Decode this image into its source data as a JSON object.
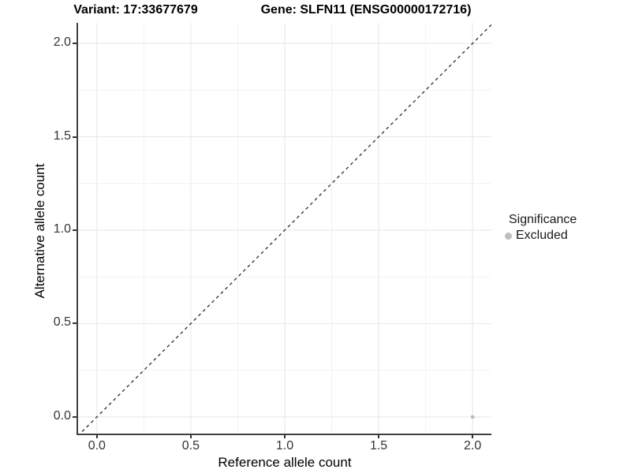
{
  "titles": {
    "variant": "Variant: 17:33677679",
    "gene": "Gene: SLFN11 (ENSG00000172716)"
  },
  "chart_data": {
    "type": "scatter",
    "title_left": "Variant: 17:33677679",
    "title_right": "Gene: SLFN11 (ENSG00000172716)",
    "xlabel": "Reference allele count",
    "ylabel": "Alternative allele count",
    "xlim": [
      -0.1,
      2.1
    ],
    "ylim": [
      -0.089,
      2.11
    ],
    "xticks": [
      0.0,
      0.5,
      1.0,
      1.5,
      2.0
    ],
    "yticks": [
      0.0,
      0.5,
      1.0,
      1.5,
      2.0
    ],
    "minor_xticks": [
      0.25,
      0.75,
      1.25,
      1.75
    ],
    "minor_yticks": [
      0.25,
      0.75,
      1.25,
      1.75
    ],
    "tick_decimals": 1,
    "grid": true,
    "reference_line": {
      "kind": "identity",
      "style": "dashed",
      "color": "#2b2b2b"
    },
    "series": [
      {
        "name": "Excluded",
        "color": "#bdbdbd",
        "points": [
          {
            "x": 2.0,
            "y": 0.0
          }
        ]
      }
    ],
    "legend": {
      "position": "right",
      "title": "Significance",
      "entries": [
        {
          "label": "Excluded",
          "color": "#bdbdbd"
        }
      ]
    },
    "colors": {
      "axis_line": "#404040",
      "tick": "#333333",
      "grid_major": "#e6e6e6",
      "grid_minor": "#f2f2f2",
      "point": "#bdbdbd"
    }
  }
}
